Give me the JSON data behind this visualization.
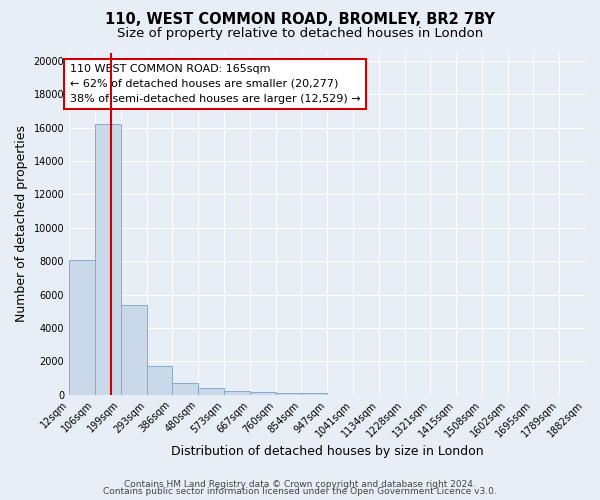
{
  "title": "110, WEST COMMON ROAD, BROMLEY, BR2 7BY",
  "subtitle": "Size of property relative to detached houses in London",
  "xlabel": "Distribution of detached houses by size in London",
  "ylabel": "Number of detached properties",
  "bar_edges": [
    12,
    106,
    199,
    293,
    386,
    480,
    573,
    667,
    760,
    854,
    947,
    1041,
    1134,
    1228,
    1321,
    1415,
    1508,
    1602,
    1695,
    1789,
    1882
  ],
  "bar_heights": [
    8050,
    16200,
    5350,
    1750,
    700,
    380,
    230,
    150,
    130,
    100,
    0,
    0,
    0,
    0,
    0,
    0,
    0,
    0,
    0,
    0
  ],
  "bar_color": "#c9d9ea",
  "bar_edge_color": "#88aac8",
  "vline_x": 165,
  "vline_color": "#cc0000",
  "annotation_title": "110 WEST COMMON ROAD: 165sqm",
  "annotation_line1": "← 62% of detached houses are smaller (20,277)",
  "annotation_line2": "38% of semi-detached houses are larger (12,529) →",
  "annotation_box_facecolor": "#ffffff",
  "annotation_box_edgecolor": "#cc0000",
  "bg_color": "#e8eef5",
  "plot_bg_color": "#e8eef5",
  "grid_color": "#ffffff",
  "tick_labels": [
    "12sqm",
    "106sqm",
    "199sqm",
    "293sqm",
    "386sqm",
    "480sqm",
    "573sqm",
    "667sqm",
    "760sqm",
    "854sqm",
    "947sqm",
    "1041sqm",
    "1134sqm",
    "1228sqm",
    "1321sqm",
    "1415sqm",
    "1508sqm",
    "1602sqm",
    "1695sqm",
    "1789sqm",
    "1882sqm"
  ],
  "ylim": [
    0,
    20500
  ],
  "yticks": [
    0,
    2000,
    4000,
    6000,
    8000,
    10000,
    12000,
    14000,
    16000,
    18000,
    20000
  ],
  "footer1": "Contains HM Land Registry data © Crown copyright and database right 2024.",
  "footer2": "Contains public sector information licensed under the Open Government Licence v3.0.",
  "title_fontsize": 10.5,
  "subtitle_fontsize": 9.5,
  "axis_label_fontsize": 9,
  "tick_fontsize": 7,
  "annotation_fontsize": 8,
  "footer_fontsize": 6.5
}
